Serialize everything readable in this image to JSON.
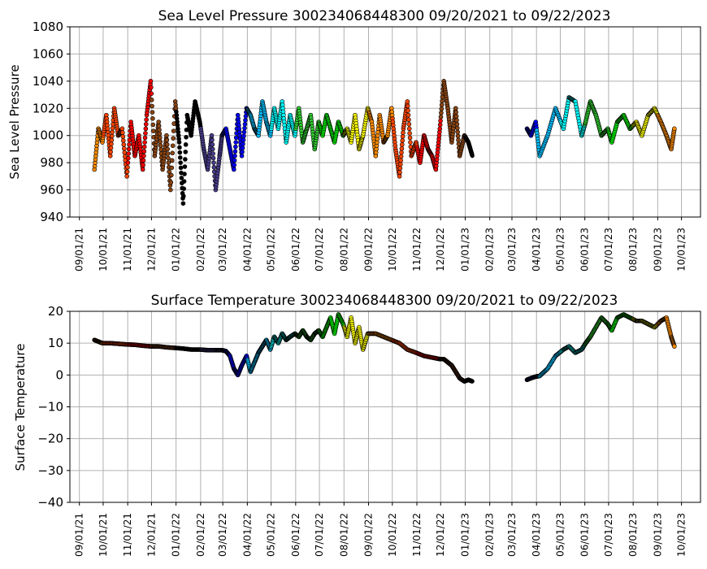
{
  "chart_data": [
    {
      "type": "scatter",
      "title": "Sea Level Pressure 300234068448300  09/20/2021 to 09/22/2023",
      "xlabel": "",
      "ylabel": "Sea Level Pressure",
      "ylim": [
        940,
        1080
      ],
      "yticks": [
        940,
        960,
        980,
        1000,
        1020,
        1040,
        1060,
        1080
      ],
      "xlim": [
        "2021-08-20",
        "2023-10-25"
      ],
      "xticks": [
        "2021-09-01",
        "2021-10-01",
        "2021-11-01",
        "2021-12-01",
        "2022-01-01",
        "2022-02-01",
        "2022-03-01",
        "2022-04-01",
        "2022-05-01",
        "2022-06-01",
        "2022-07-01",
        "2022-08-01",
        "2022-09-01",
        "2022-10-01",
        "2022-11-01",
        "2022-12-01",
        "2023-01-01",
        "2023-02-01",
        "2023-03-01",
        "2023-04-01",
        "2023-05-01",
        "2023-06-01",
        "2023-07-01",
        "2023-08-01",
        "2023-09-01",
        "2023-10-01"
      ],
      "xticklabels": [
        "09/01/21",
        "10/01/21",
        "11/01/21",
        "12/01/21",
        "01/01/22",
        "02/01/22",
        "03/01/22",
        "04/01/22",
        "05/01/22",
        "06/01/22",
        "07/01/22",
        "08/01/22",
        "09/01/22",
        "10/01/22",
        "11/01/22",
        "12/01/22",
        "01/01/23",
        "02/01/23",
        "03/01/23",
        "04/01/23",
        "05/01/23",
        "06/01/23",
        "07/01/23",
        "08/01/23",
        "09/01/23",
        "10/01/23"
      ],
      "grid": true,
      "month_colors": {
        "1": "#000000",
        "2": "#483d8b",
        "3": "#0000ff",
        "4": "#00bfff",
        "5": "#00ffff",
        "6": "#32cd32",
        "7": "#00ff00",
        "8": "#ffff00",
        "9": "#ff8c00",
        "10": "#ff4500",
        "11": "#ff0000",
        "12": "#8b4513"
      },
      "series": [
        {
          "x": [
            "2021-09-20",
            "2021-09-25",
            "2021-09-30",
            "2021-10-05",
            "2021-10-10",
            "2021-10-15",
            "2021-10-20",
            "2021-10-25",
            "2021-10-31",
            "2021-11-05",
            "2021-11-10",
            "2021-11-15",
            "2021-11-20",
            "2021-11-25",
            "2021-11-30",
            "2021-12-05",
            "2021-12-10",
            "2021-12-15",
            "2021-12-20",
            "2021-12-25",
            "2021-12-31",
            "2022-01-05",
            "2022-01-10",
            "2022-01-15",
            "2022-01-20",
            "2022-01-25",
            "2022-01-31",
            "2022-02-05",
            "2022-02-10",
            "2022-02-15",
            "2022-02-20",
            "2022-02-25",
            "2022-02-28",
            "2022-03-05",
            "2022-03-10",
            "2022-03-15",
            "2022-03-20",
            "2022-03-25",
            "2022-03-31",
            "2022-04-05",
            "2022-04-10",
            "2022-04-15",
            "2022-04-20",
            "2022-04-25",
            "2022-04-30",
            "2022-05-05",
            "2022-05-10",
            "2022-05-15",
            "2022-05-20",
            "2022-05-25",
            "2022-05-31",
            "2022-06-05",
            "2022-06-10",
            "2022-06-15",
            "2022-06-20",
            "2022-06-25",
            "2022-06-30",
            "2022-07-05",
            "2022-07-10",
            "2022-07-15",
            "2022-07-20",
            "2022-07-25",
            "2022-07-31",
            "2022-08-05",
            "2022-08-10",
            "2022-08-15",
            "2022-08-20",
            "2022-08-25",
            "2022-08-31",
            "2022-09-05",
            "2022-09-10",
            "2022-09-15",
            "2022-09-20",
            "2022-09-25",
            "2022-09-30",
            "2022-10-05",
            "2022-10-10",
            "2022-10-15",
            "2022-10-20",
            "2022-10-25",
            "2022-10-31",
            "2022-11-05",
            "2022-11-10",
            "2022-11-15",
            "2022-11-20",
            "2022-11-25",
            "2022-11-30",
            "2022-12-05",
            "2022-12-10",
            "2022-12-15",
            "2022-12-20",
            "2022-12-25",
            "2022-12-31",
            "2023-01-05",
            "2023-01-10",
            "2023-03-20",
            "2023-03-25",
            "2023-03-31",
            "2023-04-05",
            "2023-04-15",
            "2023-04-25",
            "2023-05-05",
            "2023-05-12",
            "2023-05-20",
            "2023-05-28",
            "2023-06-02",
            "2023-06-08",
            "2023-06-15",
            "2023-06-22",
            "2023-06-30",
            "2023-07-05",
            "2023-07-12",
            "2023-07-20",
            "2023-07-28",
            "2023-08-05",
            "2023-08-12",
            "2023-08-20",
            "2023-08-28",
            "2023-09-05",
            "2023-09-12",
            "2023-09-18",
            "2023-09-22"
          ],
          "y": [
            975,
            1005,
            995,
            1015,
            985,
            1020,
            1000,
            1005,
            970,
            1010,
            985,
            1000,
            975,
            1015,
            1040,
            985,
            1010,
            975,
            1000,
            960,
            1025,
            995,
            950,
            1015,
            1000,
            1025,
            1010,
            990,
            975,
            1000,
            960,
            985,
            1000,
            1005,
            990,
            975,
            1015,
            985,
            1020,
            1015,
            1005,
            1000,
            1025,
            1010,
            1000,
            1020,
            1005,
            1025,
            995,
            1015,
            1000,
            1020,
            995,
            1005,
            1015,
            990,
            1010,
            1000,
            1015,
            1005,
            995,
            1010,
            1000,
            1005,
            995,
            1015,
            990,
            1000,
            1020,
            1010,
            985,
            1015,
            995,
            1000,
            1020,
            990,
            970,
            1005,
            1025,
            985,
            995,
            980,
            1000,
            990,
            985,
            975,
            1005,
            1040,
            1020,
            995,
            1020,
            985,
            1000,
            995,
            985,
            1005,
            1000,
            1010,
            985,
            1000,
            1020,
            1005,
            1028,
            1025,
            1000,
            1010,
            1025,
            1015,
            1000,
            1005,
            995,
            1010,
            1015,
            1005,
            1010,
            1000,
            1015,
            1020,
            1010,
            1000,
            990,
            1005
          ]
        }
      ]
    },
    {
      "type": "scatter",
      "title": "Surface Temperature 300234068448300  09/20/2021 to 09/22/2023",
      "xlabel": "",
      "ylabel": "Surface Temperature",
      "ylim": [
        -40,
        20
      ],
      "yticks": [
        -40,
        -30,
        -20,
        -10,
        0,
        10,
        20
      ],
      "xlim": [
        "2021-08-20",
        "2023-10-25"
      ],
      "grid": true,
      "series": [
        {
          "x": [
            "2021-09-20",
            "2021-09-25",
            "2021-09-30",
            "2021-10-10",
            "2021-10-20",
            "2021-10-31",
            "2021-11-10",
            "2021-11-20",
            "2021-11-30",
            "2021-12-10",
            "2021-12-20",
            "2021-12-31",
            "2022-01-10",
            "2022-01-20",
            "2022-01-31",
            "2022-02-10",
            "2022-02-20",
            "2022-02-28",
            "2022-03-05",
            "2022-03-10",
            "2022-03-15",
            "2022-03-20",
            "2022-03-25",
            "2022-03-31",
            "2022-04-05",
            "2022-04-10",
            "2022-04-15",
            "2022-04-20",
            "2022-04-25",
            "2022-04-30",
            "2022-05-05",
            "2022-05-10",
            "2022-05-15",
            "2022-05-20",
            "2022-05-25",
            "2022-05-31",
            "2022-06-05",
            "2022-06-10",
            "2022-06-15",
            "2022-06-20",
            "2022-06-25",
            "2022-06-30",
            "2022-07-05",
            "2022-07-10",
            "2022-07-15",
            "2022-07-20",
            "2022-07-25",
            "2022-07-31",
            "2022-08-05",
            "2022-08-10",
            "2022-08-15",
            "2022-08-20",
            "2022-08-25",
            "2022-08-31",
            "2022-09-10",
            "2022-09-20",
            "2022-09-30",
            "2022-10-10",
            "2022-10-20",
            "2022-10-31",
            "2022-11-10",
            "2022-11-20",
            "2022-11-30",
            "2022-12-05",
            "2022-12-10",
            "2022-12-15",
            "2022-12-20",
            "2022-12-25",
            "2022-12-31",
            "2023-01-05",
            "2023-01-10",
            "2023-03-20",
            "2023-03-25",
            "2023-03-31",
            "2023-04-05",
            "2023-04-15",
            "2023-04-25",
            "2023-05-05",
            "2023-05-12",
            "2023-05-20",
            "2023-05-28",
            "2023-06-02",
            "2023-06-08",
            "2023-06-15",
            "2023-06-22",
            "2023-06-30",
            "2023-07-05",
            "2023-07-12",
            "2023-07-20",
            "2023-07-28",
            "2023-08-05",
            "2023-08-12",
            "2023-08-20",
            "2023-08-28",
            "2023-09-05",
            "2023-09-12",
            "2023-09-18",
            "2023-09-22"
          ],
          "y": [
            11,
            10.5,
            10,
            10,
            9.8,
            9.6,
            9.5,
            9.2,
            9,
            9,
            8.7,
            8.5,
            8.3,
            8,
            8,
            7.8,
            7.8,
            7.8,
            7.5,
            6,
            2,
            0,
            3,
            6,
            1,
            4,
            7,
            9,
            11,
            8,
            12,
            10,
            13,
            11,
            12,
            13,
            12,
            14,
            12,
            11,
            13,
            14,
            12,
            15,
            18,
            13,
            19,
            16,
            12,
            18,
            10,
            15,
            8,
            13,
            13,
            12,
            11,
            10,
            8,
            7,
            6,
            5.5,
            5,
            5,
            4,
            3,
            1,
            -1,
            -2,
            -1.5,
            -2,
            -1.5,
            -1,
            -0.5,
            -0.3,
            2,
            6,
            8,
            9,
            7,
            8,
            10,
            12,
            15,
            18,
            16,
            14,
            18,
            19,
            18,
            17,
            17,
            16,
            15,
            17,
            18,
            12,
            9
          ]
        }
      ]
    }
  ]
}
